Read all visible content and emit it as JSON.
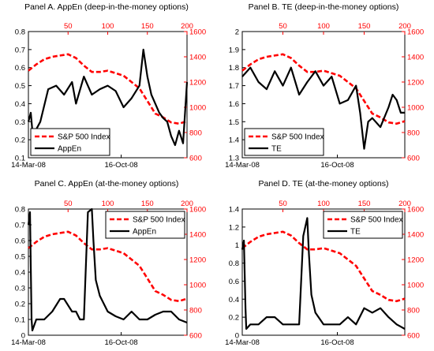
{
  "chart_data": [
    {
      "type": "line",
      "title": "Panel A. AppEn (deep-in-the-money options)",
      "x_bottom_labels": [
        "14-Mar-08",
        "16-Oct-08"
      ],
      "x_top_ticks": [
        50,
        100,
        150,
        200
      ],
      "xlim": [
        0,
        200
      ],
      "ylim_left": [
        0.1,
        0.8
      ],
      "yticks_left": [
        "0.1",
        "0.2",
        "0.3",
        "0.4",
        "0.5",
        "0.6",
        "0.7",
        "0.8"
      ],
      "ylim_right": [
        600,
        1600
      ],
      "yticks_right": [
        "600",
        "800",
        "1000",
        "1200",
        "1400",
        "1600"
      ],
      "legend": {
        "position": "bottom-left"
      },
      "series": [
        {
          "name": "S&P 500 Index",
          "axis": "right",
          "color": "#ff0000",
          "style": "dashed",
          "x": [
            0,
            10,
            20,
            30,
            40,
            50,
            60,
            70,
            80,
            90,
            100,
            110,
            120,
            130,
            140,
            150,
            160,
            170,
            180,
            190,
            200
          ],
          "values": [
            1290,
            1340,
            1380,
            1400,
            1410,
            1420,
            1390,
            1330,
            1280,
            1280,
            1290,
            1270,
            1250,
            1200,
            1150,
            1050,
            950,
            920,
            880,
            870,
            890
          ]
        },
        {
          "name": "AppEn",
          "axis": "left",
          "color": "#000000",
          "style": "solid",
          "x": [
            0,
            3,
            6,
            9,
            15,
            25,
            35,
            45,
            55,
            60,
            70,
            80,
            90,
            100,
            110,
            120,
            130,
            140,
            145,
            150,
            155,
            160,
            165,
            170,
            175,
            180,
            185,
            190,
            195,
            200
          ],
          "values": [
            0.3,
            0.35,
            0.2,
            0.25,
            0.3,
            0.48,
            0.5,
            0.45,
            0.52,
            0.4,
            0.55,
            0.45,
            0.48,
            0.5,
            0.47,
            0.38,
            0.43,
            0.5,
            0.7,
            0.55,
            0.45,
            0.4,
            0.35,
            0.32,
            0.3,
            0.22,
            0.17,
            0.25,
            0.18,
            0.52
          ]
        }
      ]
    },
    {
      "type": "line",
      "title": "Panel B. TE (deep-in-the-money options)",
      "x_bottom_labels": [
        "14-Mar-08",
        "16-Oct-08"
      ],
      "x_top_ticks": [
        50,
        100,
        150,
        200
      ],
      "xlim": [
        0,
        200
      ],
      "ylim_left": [
        1.3,
        2.0
      ],
      "yticks_left": [
        "1.3",
        "1.4",
        "1.5",
        "1.6",
        "1.7",
        "1.8",
        "1.9",
        "2"
      ],
      "ylim_right": [
        600,
        1600
      ],
      "yticks_right": [
        "600",
        "800",
        "1000",
        "1200",
        "1400",
        "1600"
      ],
      "legend": {
        "position": "bottom-left"
      },
      "series": [
        {
          "name": "S&P 500 Index",
          "axis": "right",
          "color": "#ff0000",
          "style": "dashed",
          "x": [
            0,
            10,
            20,
            30,
            40,
            50,
            60,
            70,
            80,
            90,
            100,
            110,
            120,
            130,
            140,
            150,
            160,
            170,
            180,
            190,
            200
          ],
          "values": [
            1290,
            1340,
            1380,
            1400,
            1410,
            1420,
            1390,
            1330,
            1280,
            1280,
            1290,
            1270,
            1250,
            1200,
            1150,
            1050,
            950,
            920,
            880,
            870,
            890
          ]
        },
        {
          "name": "TE",
          "axis": "left",
          "color": "#000000",
          "style": "solid",
          "x": [
            0,
            10,
            20,
            30,
            40,
            50,
            60,
            70,
            80,
            90,
            100,
            110,
            120,
            130,
            140,
            145,
            150,
            155,
            160,
            170,
            180,
            185,
            190,
            195,
            200
          ],
          "values": [
            1.75,
            1.8,
            1.72,
            1.68,
            1.78,
            1.7,
            1.8,
            1.65,
            1.72,
            1.78,
            1.7,
            1.75,
            1.6,
            1.62,
            1.7,
            1.55,
            1.35,
            1.5,
            1.52,
            1.47,
            1.58,
            1.65,
            1.62,
            1.55,
            1.55
          ]
        }
      ]
    },
    {
      "type": "line",
      "title": "Panel C. AppEn (at-the-money options)",
      "x_bottom_labels": [
        "14-Mar-08",
        "16-Oct-08"
      ],
      "x_top_ticks": [
        50,
        100,
        150,
        200
      ],
      "xlim": [
        0,
        200
      ],
      "ylim_left": [
        0,
        0.8
      ],
      "yticks_left": [
        "0",
        "0.1",
        "0.2",
        "0.3",
        "0.4",
        "0.5",
        "0.6",
        "0.7",
        "0.8"
      ],
      "ylim_right": [
        600,
        1600
      ],
      "yticks_right": [
        "600",
        "800",
        "1000",
        "1200",
        "1400",
        "1600"
      ],
      "legend": {
        "position": "top-right"
      },
      "series": [
        {
          "name": "S&P 500 Index",
          "axis": "right",
          "color": "#ff0000",
          "style": "dashed",
          "x": [
            0,
            10,
            20,
            30,
            40,
            50,
            60,
            70,
            80,
            90,
            100,
            110,
            120,
            130,
            140,
            150,
            160,
            170,
            180,
            190,
            200
          ],
          "values": [
            1290,
            1340,
            1380,
            1400,
            1410,
            1420,
            1390,
            1330,
            1280,
            1280,
            1290,
            1270,
            1250,
            1200,
            1150,
            1050,
            950,
            920,
            880,
            870,
            890
          ]
        },
        {
          "name": "AppEn",
          "axis": "left",
          "color": "#000000",
          "style": "solid",
          "x": [
            0,
            2,
            4,
            5,
            10,
            20,
            30,
            40,
            45,
            55,
            60,
            65,
            70,
            75,
            80,
            82,
            85,
            90,
            100,
            110,
            120,
            130,
            140,
            150,
            160,
            170,
            180,
            190,
            200
          ],
          "values": [
            0.7,
            0.78,
            0.1,
            0.03,
            0.1,
            0.1,
            0.15,
            0.23,
            0.23,
            0.15,
            0.15,
            0.1,
            0.1,
            0.78,
            0.8,
            0.6,
            0.35,
            0.25,
            0.15,
            0.12,
            0.1,
            0.15,
            0.1,
            0.1,
            0.13,
            0.15,
            0.15,
            0.1,
            0.08
          ]
        }
      ]
    },
    {
      "type": "line",
      "title": "Panel D. TE (at-the-money options)",
      "x_bottom_labels": [
        "14-Mar-08",
        "16-Oct-08"
      ],
      "x_top_ticks": [
        50,
        100,
        150,
        200
      ],
      "xlim": [
        0,
        200
      ],
      "ylim_left": [
        0,
        1.4
      ],
      "yticks_left": [
        "0",
        "0.2",
        "0.4",
        "0.6",
        "0.8",
        "1",
        "1.2",
        "1.4"
      ],
      "ylim_right": [
        600,
        1600
      ],
      "yticks_right": [
        "600",
        "800",
        "1000",
        "1200",
        "1400",
        "1600"
      ],
      "legend": {
        "position": "top-right"
      },
      "series": [
        {
          "name": "S&P 500 Index",
          "axis": "right",
          "color": "#ff0000",
          "style": "dashed",
          "x": [
            0,
            10,
            20,
            30,
            40,
            50,
            60,
            70,
            80,
            90,
            100,
            110,
            120,
            130,
            140,
            150,
            160,
            170,
            180,
            190,
            200
          ],
          "values": [
            1290,
            1340,
            1380,
            1400,
            1410,
            1420,
            1390,
            1330,
            1280,
            1280,
            1290,
            1270,
            1250,
            1200,
            1150,
            1050,
            950,
            920,
            880,
            870,
            890
          ]
        },
        {
          "name": "TE",
          "axis": "left",
          "color": "#000000",
          "style": "solid",
          "x": [
            0,
            2,
            4,
            5,
            10,
            20,
            30,
            40,
            50,
            60,
            70,
            75,
            80,
            82,
            85,
            90,
            100,
            110,
            120,
            130,
            140,
            150,
            160,
            170,
            180,
            190,
            200
          ],
          "values": [
            0.95,
            1.05,
            0.3,
            0.07,
            0.12,
            0.12,
            0.2,
            0.2,
            0.12,
            0.12,
            0.12,
            1.1,
            1.3,
            0.9,
            0.45,
            0.25,
            0.12,
            0.12,
            0.12,
            0.2,
            0.12,
            0.3,
            0.25,
            0.3,
            0.2,
            0.12,
            0.07
          ]
        }
      ]
    }
  ]
}
